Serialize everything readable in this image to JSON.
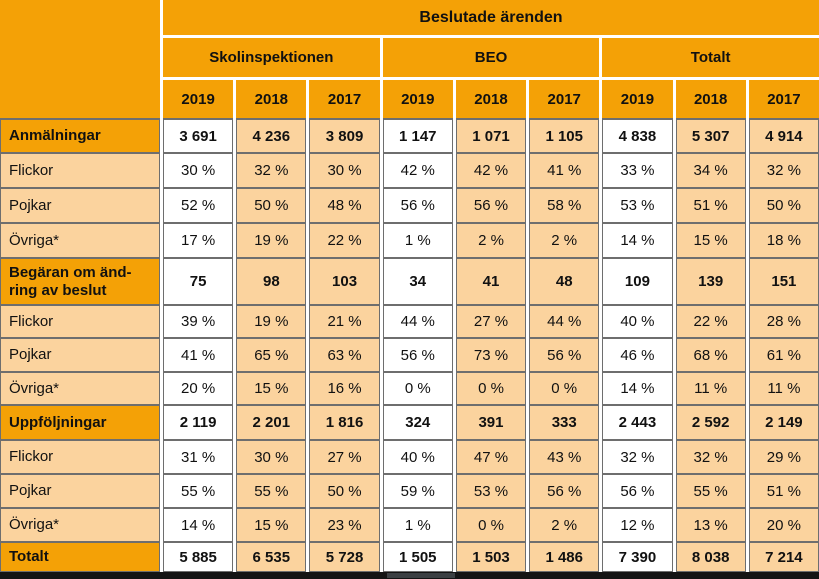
{
  "colors": {
    "orange": "#F4A106",
    "peach": "#FBD39E",
    "border_gray": "#6E6E6E",
    "bar_black": "#141414",
    "bar_highlight": "#3C4043"
  },
  "table": {
    "title": "Beslutade ärenden",
    "groups": [
      "Skolinspektionen",
      "BEO",
      "Totalt"
    ],
    "years": [
      "2019",
      "2018",
      "2017",
      "2019",
      "2018",
      "2017",
      "2019",
      "2018",
      "2017"
    ],
    "rows": [
      {
        "label": "Anmälningar",
        "type": "section",
        "values": [
          "3 691",
          "4 236",
          "3 809",
          "1 147",
          "1 071",
          "1 105",
          "4 838",
          "5 307",
          "4 914"
        ]
      },
      {
        "label": "Flickor",
        "type": "sub",
        "values": [
          "30 %",
          "32 %",
          "30 %",
          "42 %",
          "42 %",
          "41 %",
          "33 %",
          "34 %",
          "32 %"
        ]
      },
      {
        "label": "Pojkar",
        "type": "sub",
        "values": [
          "52 %",
          "50 %",
          "48 %",
          "56 %",
          "56 %",
          "58 %",
          "53 %",
          "51 %",
          "50 %"
        ]
      },
      {
        "label": "Övriga*",
        "type": "sub",
        "values": [
          "17 %",
          "19 %",
          "22 %",
          "1 %",
          "2 %",
          "2 %",
          "14 %",
          "15 %",
          "18 %"
        ]
      },
      {
        "label": "Begäran om änd-\nring av beslut",
        "type": "section",
        "values": [
          "75",
          "98",
          "103",
          "34",
          "41",
          "48",
          "109",
          "139",
          "151"
        ]
      },
      {
        "label": "Flickor",
        "type": "sub",
        "values": [
          "39 %",
          "19 %",
          "21 %",
          "44 %",
          "27 %",
          "44 %",
          "40 %",
          "22 %",
          "28 %"
        ]
      },
      {
        "label": "Pojkar",
        "type": "sub",
        "values": [
          "41 %",
          "65 %",
          "63 %",
          "56 %",
          "73 %",
          "56 %",
          "46 %",
          "68 %",
          "61 %"
        ]
      },
      {
        "label": "Övriga*",
        "type": "sub",
        "values": [
          "20 %",
          "15 %",
          "16 %",
          "0 %",
          "0 %",
          "0 %",
          "14 %",
          "11 %",
          "11 %"
        ]
      },
      {
        "label": "Uppföljningar",
        "type": "section",
        "values": [
          "2 119",
          "2 201",
          "1 816",
          "324",
          "391",
          "333",
          "2 443",
          "2 592",
          "2 149"
        ]
      },
      {
        "label": "Flickor",
        "type": "sub",
        "values": [
          "31 %",
          "30 %",
          "27 %",
          "40 %",
          "47 %",
          "43 %",
          "32 %",
          "32 %",
          "29 %"
        ]
      },
      {
        "label": "Pojkar",
        "type": "sub",
        "values": [
          "55 %",
          "55 %",
          "50 %",
          "59 %",
          "53 %",
          "56 %",
          "56 %",
          "55 %",
          "51 %"
        ]
      },
      {
        "label": "Övriga*",
        "type": "sub",
        "values": [
          "14 %",
          "15 %",
          "23 %",
          "1 %",
          "0 %",
          "2 %",
          "12 %",
          "13 %",
          "20 %"
        ]
      },
      {
        "label": "Totalt",
        "type": "section",
        "values": [
          "5 885",
          "6 535",
          "5 728",
          "1 505",
          "1 503",
          "1 486",
          "7 390",
          "8 038",
          "7 214"
        ]
      }
    ]
  }
}
